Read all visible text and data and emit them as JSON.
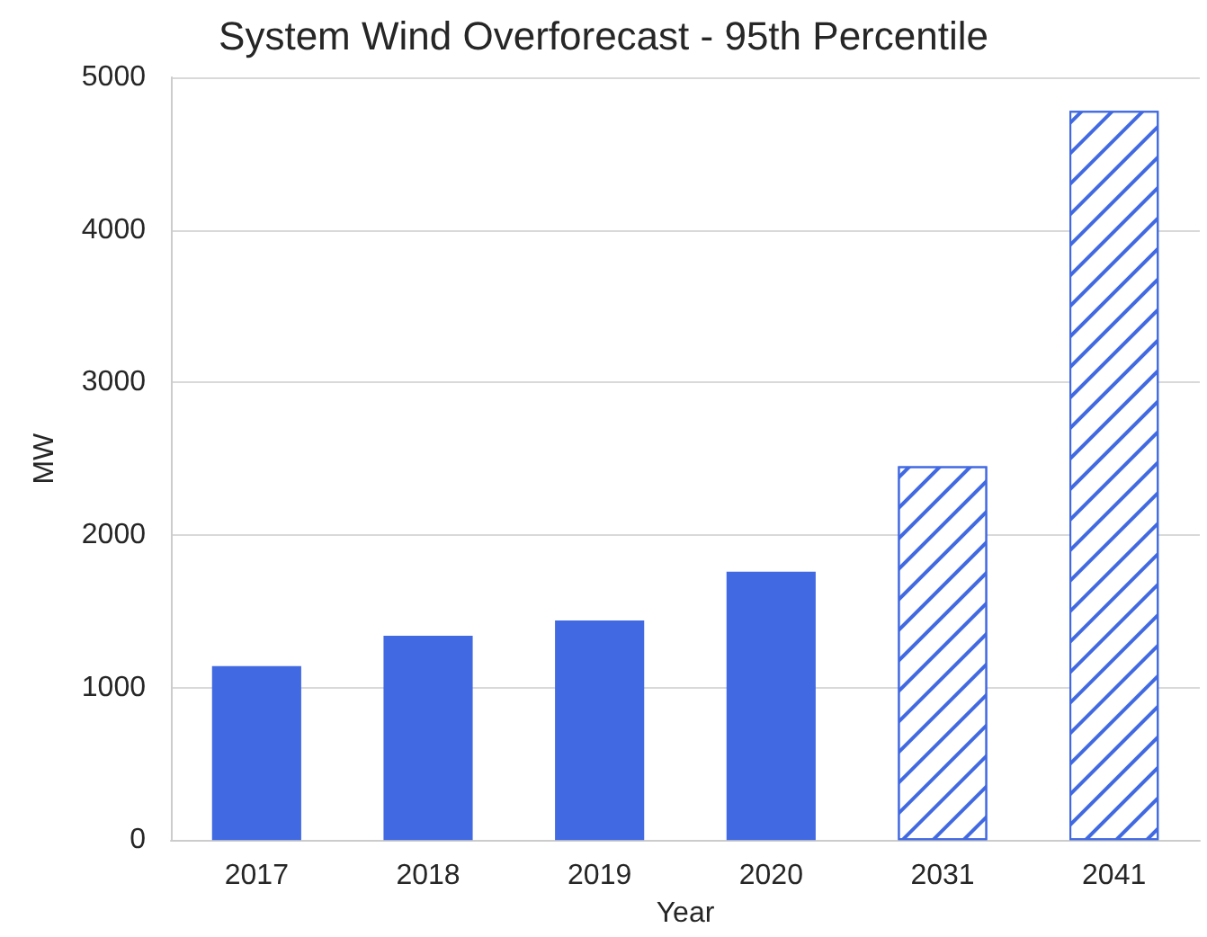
{
  "chart_data": {
    "type": "bar",
    "title": "System Wind Overforecast - 95th Percentile",
    "xlabel": "Year",
    "ylabel": "MW",
    "categories": [
      "2017",
      "2018",
      "2019",
      "2020",
      "2031",
      "2041"
    ],
    "stacked": true,
    "series": [
      {
        "color": "#4169e1",
        "values": [
          1140,
          1340,
          1440,
          1760,
          null,
          null
        ]
      },
      {
        "color": "#4169e1",
        "values": [
          null,
          null,
          null,
          null,
          2450,
          4780
        ]
      }
    ],
    "ylim": [
      0,
      5000
    ],
    "yticks": [
      0,
      1000,
      2000,
      3000,
      4000,
      5000
    ],
    "grid": "y"
  }
}
